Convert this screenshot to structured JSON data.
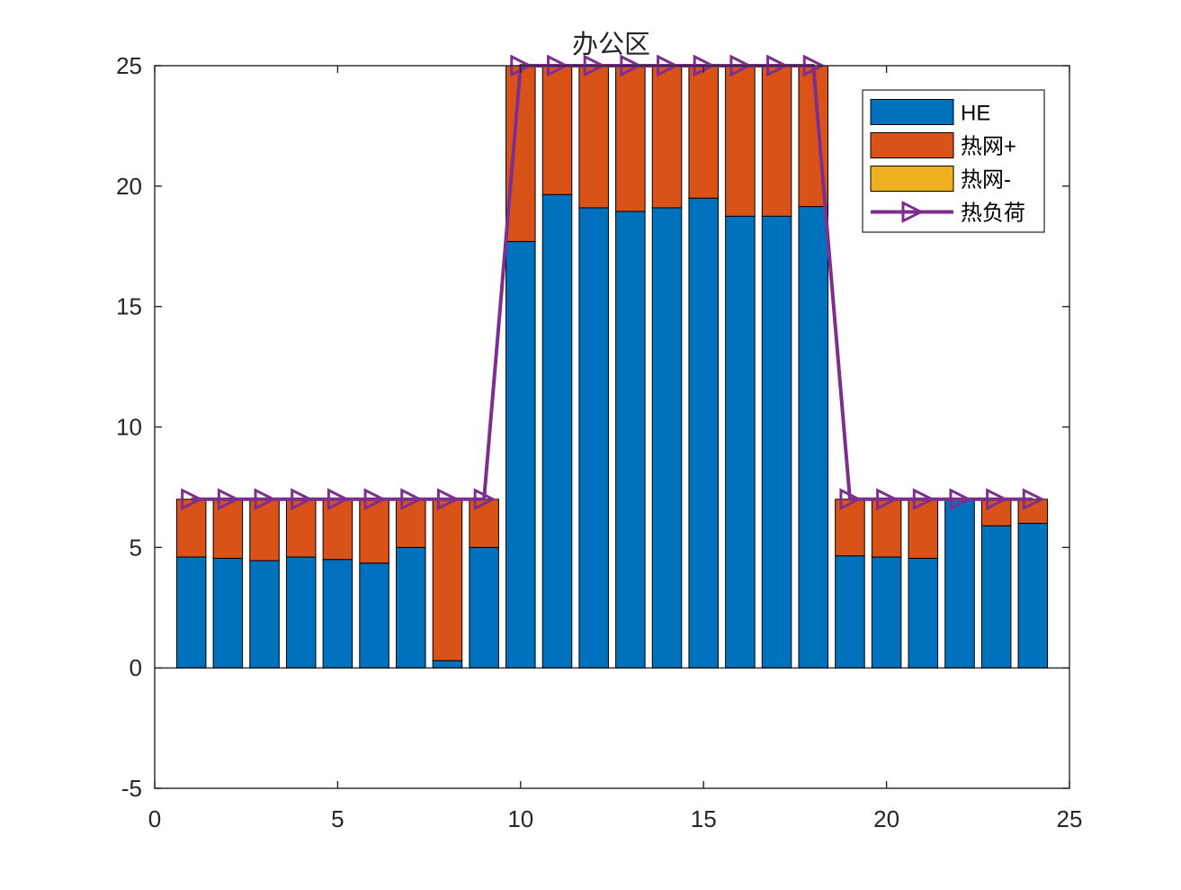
{
  "chart_data": {
    "type": "bar",
    "stacked": true,
    "title": "办公区",
    "xlabel": "",
    "ylabel": "",
    "xlim": [
      0,
      25
    ],
    "ylim": [
      -5,
      25
    ],
    "xticks": [
      0,
      5,
      10,
      15,
      20,
      25
    ],
    "yticks": [
      -5,
      0,
      5,
      10,
      15,
      20,
      25
    ],
    "grid": false,
    "legend_location": "top-right",
    "x": [
      1,
      2,
      3,
      4,
      5,
      6,
      7,
      8,
      9,
      10,
      11,
      12,
      13,
      14,
      15,
      16,
      17,
      18,
      19,
      20,
      21,
      22,
      23,
      24
    ],
    "series": [
      {
        "name": "HE",
        "kind": "bar",
        "color": "#0072BD",
        "values": [
          4.6,
          4.55,
          4.45,
          4.6,
          4.5,
          4.35,
          5.0,
          0.3,
          5.0,
          17.7,
          19.65,
          19.1,
          18.95,
          19.1,
          19.5,
          18.75,
          18.75,
          19.15,
          4.65,
          4.6,
          4.55,
          7.0,
          5.9,
          6.0
        ]
      },
      {
        "name": "热网+",
        "kind": "bar",
        "color": "#D95319",
        "values": [
          2.4,
          2.45,
          2.55,
          2.4,
          2.5,
          2.65,
          2.0,
          6.7,
          2.0,
          7.3,
          5.35,
          5.9,
          6.05,
          5.9,
          5.5,
          6.25,
          6.25,
          5.85,
          2.35,
          2.4,
          2.45,
          0.0,
          1.1,
          1.0
        ]
      },
      {
        "name": "热网-",
        "kind": "bar",
        "color": "#EDB120",
        "values": [
          0,
          0,
          0,
          0,
          0,
          0,
          0,
          0,
          0,
          0,
          0,
          0,
          0,
          0,
          0,
          0,
          0,
          0,
          0,
          0,
          0,
          0,
          0,
          0
        ]
      },
      {
        "name": "热负荷",
        "kind": "line",
        "marker": "triangle-right",
        "color": "#7E2F8E",
        "values": [
          7,
          7,
          7,
          7,
          7,
          7,
          7,
          7,
          7,
          25,
          25,
          25,
          25,
          25,
          25,
          25,
          25,
          25,
          7,
          7,
          7,
          7,
          7,
          7
        ]
      }
    ]
  }
}
